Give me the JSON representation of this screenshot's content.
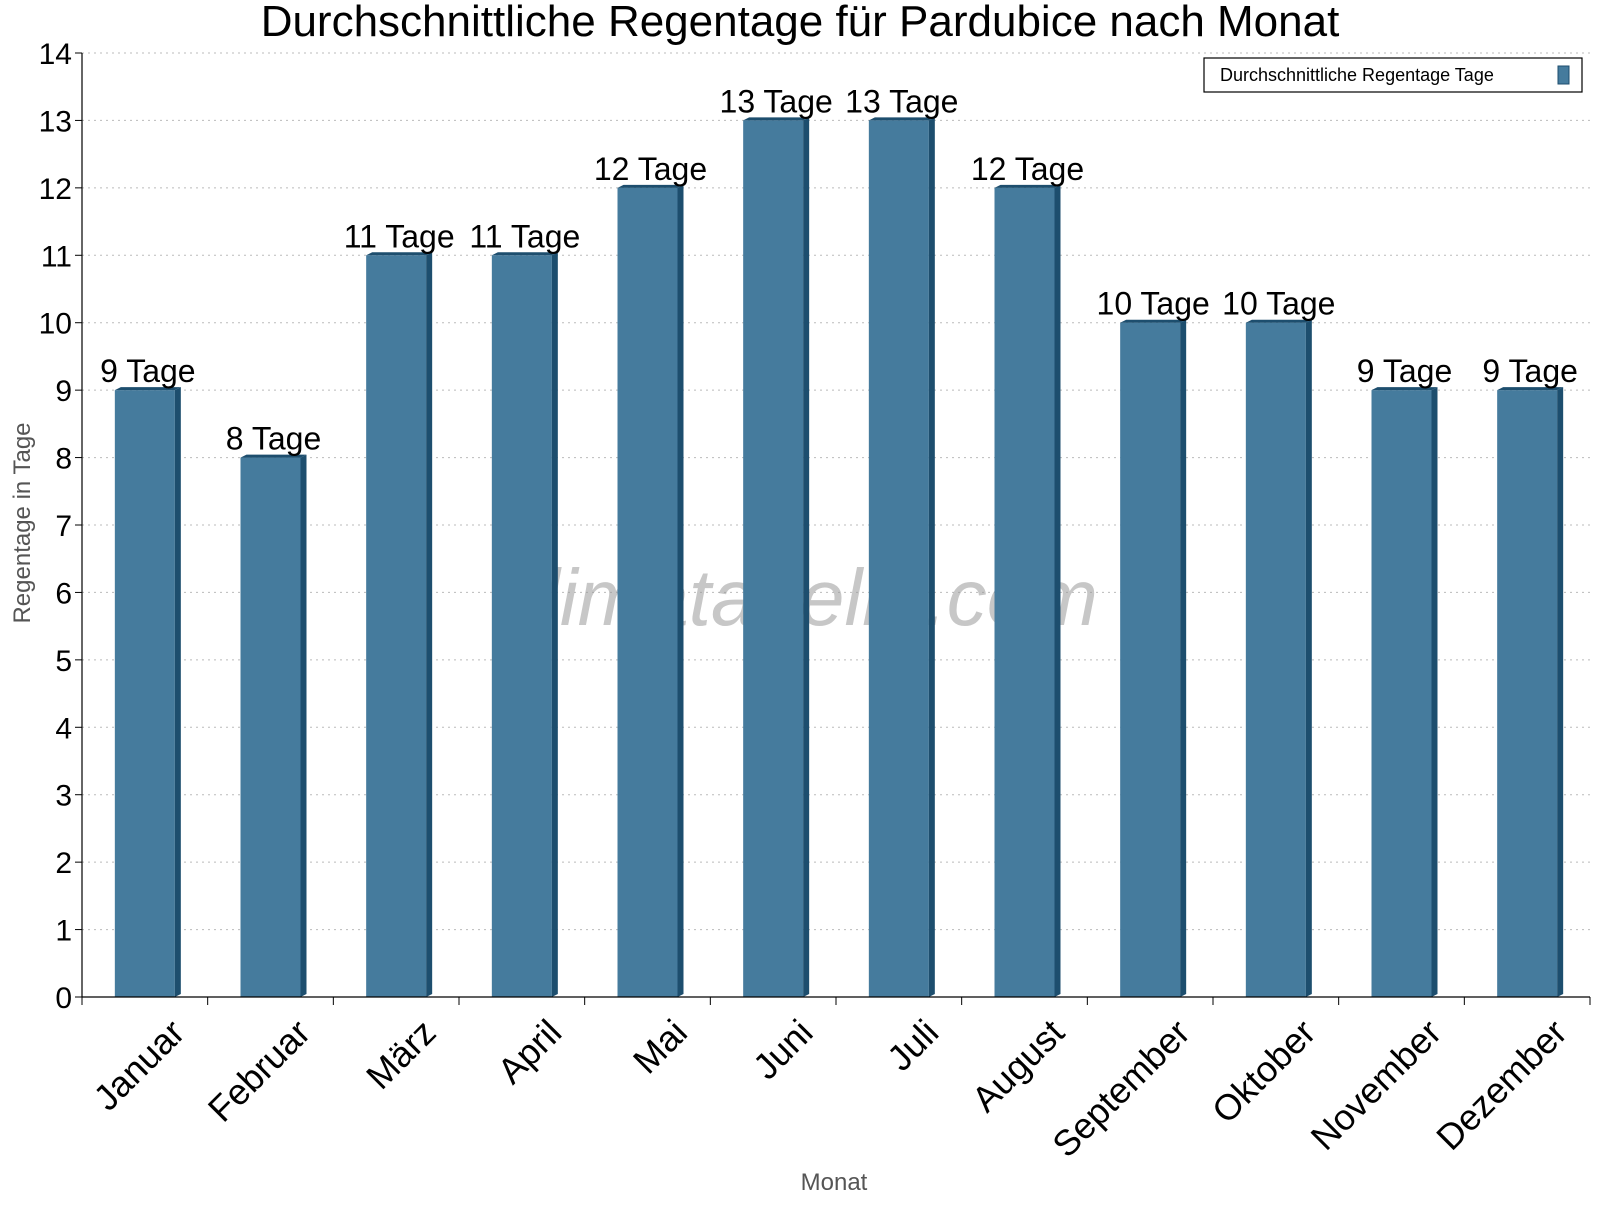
{
  "chart_data": {
    "type": "bar",
    "title": "Durchschnittliche Regentage für Pardubice nach Monat",
    "xlabel": "Monat",
    "ylabel": "Regentage in Tage",
    "ylim": [
      0,
      14
    ],
    "yticks": [
      0,
      1,
      2,
      3,
      4,
      5,
      6,
      7,
      8,
      9,
      10,
      11,
      12,
      13,
      14
    ],
    "grid": true,
    "legend_position": "top-right",
    "categories": [
      "Januar",
      "Februar",
      "März",
      "April",
      "Mai",
      "Juni",
      "Juli",
      "August",
      "September",
      "Oktober",
      "November",
      "Dezember"
    ],
    "series": [
      {
        "name": "Durchschnittliche Regentage Tage",
        "values": [
          9,
          8,
          11,
          11,
          12,
          13,
          13,
          12,
          10,
          10,
          9,
          9
        ],
        "labels": [
          "9 Tage",
          "8 Tage",
          "11 Tage",
          "11 Tage",
          "12 Tage",
          "13 Tage",
          "13 Tage",
          "12 Tage",
          "10 Tage",
          "10 Tage",
          "9 Tage",
          "9 Tage"
        ],
        "color": "#457b9d",
        "side_color": "#1d4e6e"
      }
    ],
    "watermark": "klimatabelle.com"
  }
}
